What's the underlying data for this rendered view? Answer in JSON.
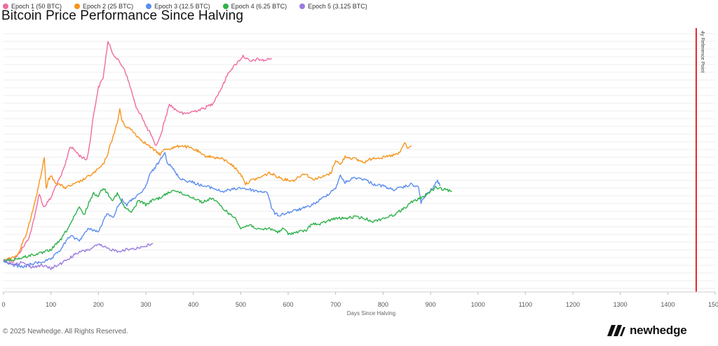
{
  "header": {
    "title": "Bitcoin Price Performance Since Halving"
  },
  "legend": [
    {
      "label": "Epoch 1 (50 BTC)",
      "color": "#f06ba0"
    },
    {
      "label": "Epoch 2 (25 BTC)",
      "color": "#f7941d"
    },
    {
      "label": "Epoch 3 (12.5 BTC)",
      "color": "#5b8def"
    },
    {
      "label": "Epoch 4 (6.25 BTC)",
      "color": "#2fb24c"
    },
    {
      "label": "Epoch 5 (3.125 BTC)",
      "color": "#9b7be0"
    }
  ],
  "footer": {
    "copyright": "© 2025 Newhedge. All Rights Reserved.",
    "brand": "newhedge",
    "logo_icon": "newhedge-logo-icon"
  },
  "chart_data": {
    "type": "line",
    "xlabel": "Days Since Halving",
    "xlim": [
      0,
      1500
    ],
    "x_ticks": [
      0,
      100,
      200,
      300,
      400,
      500,
      600,
      700,
      800,
      900,
      1000,
      1100,
      1200,
      1300,
      1400,
      1500
    ],
    "y_scale": "log",
    "y_tick_labels_visible": false,
    "grid": {
      "horizontal": true,
      "vertical": false
    },
    "legend_position": "top-left",
    "reference_line": {
      "x": 1460,
      "label": "4y Reference Point",
      "color": "#e0282e"
    },
    "series": [
      {
        "name": "Epoch 1 (50 BTC)",
        "color": "#f06ba0",
        "points": [
          [
            0,
            1.0
          ],
          [
            10,
            1.05
          ],
          [
            20,
            0.98
          ],
          [
            30,
            1.1
          ],
          [
            45,
            1.3
          ],
          [
            55,
            1.5
          ],
          [
            65,
            2.0
          ],
          [
            75,
            3.0
          ],
          [
            85,
            2.4
          ],
          [
            100,
            2.8
          ],
          [
            110,
            3.4
          ],
          [
            120,
            3.9
          ],
          [
            130,
            4.8
          ],
          [
            140,
            6.5
          ],
          [
            150,
            6.1
          ],
          [
            160,
            5.6
          ],
          [
            175,
            5.2
          ],
          [
            180,
            6.2
          ],
          [
            190,
            11.0
          ],
          [
            200,
            17.0
          ],
          [
            210,
            20.0
          ],
          [
            220,
            36.0
          ],
          [
            230,
            30.0
          ],
          [
            240,
            27.0
          ],
          [
            255,
            23.0
          ],
          [
            270,
            16.0
          ],
          [
            280,
            12.0
          ],
          [
            290,
            11.0
          ],
          [
            300,
            9.0
          ],
          [
            310,
            8.0
          ],
          [
            320,
            6.5
          ],
          [
            330,
            7.5
          ],
          [
            340,
            10.0
          ],
          [
            350,
            13.0
          ],
          [
            360,
            12.0
          ],
          [
            380,
            11.0
          ],
          [
            400,
            11.5
          ],
          [
            420,
            12.0
          ],
          [
            440,
            13.0
          ],
          [
            460,
            17.0
          ],
          [
            475,
            22.0
          ],
          [
            490,
            25.0
          ],
          [
            505,
            28.5
          ],
          [
            520,
            26.0
          ],
          [
            535,
            27.0
          ],
          [
            550,
            26.5
          ],
          [
            565,
            27.5
          ]
        ]
      },
      {
        "name": "Epoch 2 (25 BTC)",
        "color": "#f7941d",
        "points": [
          [
            0,
            1.0
          ],
          [
            30,
            1.1
          ],
          [
            50,
            1.6
          ],
          [
            60,
            2.2
          ],
          [
            70,
            3.0
          ],
          [
            80,
            4.2
          ],
          [
            86,
            5.5
          ],
          [
            90,
            3.2
          ],
          [
            95,
            3.8
          ],
          [
            100,
            4.0
          ],
          [
            110,
            3.6
          ],
          [
            130,
            3.3
          ],
          [
            150,
            3.5
          ],
          [
            170,
            3.8
          ],
          [
            190,
            4.2
          ],
          [
            210,
            4.8
          ],
          [
            220,
            5.8
          ],
          [
            230,
            7.5
          ],
          [
            240,
            9.5
          ],
          [
            245,
            12.0
          ],
          [
            250,
            9.8
          ],
          [
            258,
            9.0
          ],
          [
            270,
            8.5
          ],
          [
            285,
            7.5
          ],
          [
            300,
            6.8
          ],
          [
            315,
            6.2
          ],
          [
            330,
            5.7
          ],
          [
            340,
            6.2
          ],
          [
            355,
            6.3
          ],
          [
            375,
            6.6
          ],
          [
            395,
            6.3
          ],
          [
            410,
            6.0
          ],
          [
            420,
            5.6
          ],
          [
            435,
            5.5
          ],
          [
            460,
            5.3
          ],
          [
            475,
            5.0
          ],
          [
            490,
            4.5
          ],
          [
            505,
            3.9
          ],
          [
            510,
            3.5
          ],
          [
            520,
            3.7
          ],
          [
            540,
            3.9
          ],
          [
            560,
            4.2
          ],
          [
            575,
            4.0
          ],
          [
            590,
            3.8
          ],
          [
            610,
            3.7
          ],
          [
            625,
            4.0
          ],
          [
            635,
            4.2
          ],
          [
            650,
            3.8
          ],
          [
            670,
            3.9
          ],
          [
            690,
            4.2
          ],
          [
            700,
            5.2
          ],
          [
            710,
            4.8
          ],
          [
            720,
            5.5
          ],
          [
            740,
            5.3
          ],
          [
            760,
            5.0
          ],
          [
            780,
            5.4
          ],
          [
            800,
            5.4
          ],
          [
            820,
            5.6
          ],
          [
            835,
            5.8
          ],
          [
            845,
            6.9
          ],
          [
            852,
            6.3
          ],
          [
            860,
            6.5
          ]
        ]
      },
      {
        "name": "Epoch 3 (12.5 BTC)",
        "color": "#5b8def",
        "points": [
          [
            0,
            1.0
          ],
          [
            20,
            0.93
          ],
          [
            40,
            0.9
          ],
          [
            60,
            0.95
          ],
          [
            80,
            0.98
          ],
          [
            100,
            1.02
          ],
          [
            120,
            1.2
          ],
          [
            140,
            1.5
          ],
          [
            160,
            1.4
          ],
          [
            180,
            1.7
          ],
          [
            200,
            1.6
          ],
          [
            210,
            1.9
          ],
          [
            220,
            2.2
          ],
          [
            230,
            2.0
          ],
          [
            240,
            2.4
          ],
          [
            250,
            2.7
          ],
          [
            260,
            2.5
          ],
          [
            275,
            2.8
          ],
          [
            290,
            3.0
          ],
          [
            300,
            3.4
          ],
          [
            310,
            4.2
          ],
          [
            320,
            4.6
          ],
          [
            330,
            5.2
          ],
          [
            340,
            6.0
          ],
          [
            345,
            5.0
          ],
          [
            355,
            4.6
          ],
          [
            370,
            3.9
          ],
          [
            385,
            3.7
          ],
          [
            400,
            3.6
          ],
          [
            420,
            3.4
          ],
          [
            440,
            3.3
          ],
          [
            460,
            3.1
          ],
          [
            480,
            3.2
          ],
          [
            500,
            3.3
          ],
          [
            520,
            3.2
          ],
          [
            540,
            3.1
          ],
          [
            555,
            3.1
          ],
          [
            565,
            2.4
          ],
          [
            570,
            2.2
          ],
          [
            580,
            2.1
          ],
          [
            600,
            2.2
          ],
          [
            620,
            2.3
          ],
          [
            640,
            2.4
          ],
          [
            660,
            2.6
          ],
          [
            680,
            2.9
          ],
          [
            700,
            3.3
          ],
          [
            710,
            4.0
          ],
          [
            720,
            3.6
          ],
          [
            740,
            3.9
          ],
          [
            760,
            3.8
          ],
          [
            780,
            3.5
          ],
          [
            800,
            3.4
          ],
          [
            820,
            3.2
          ],
          [
            840,
            3.3
          ],
          [
            860,
            3.5
          ],
          [
            875,
            3.3
          ],
          [
            880,
            2.6
          ],
          [
            890,
            2.9
          ],
          [
            905,
            3.3
          ],
          [
            915,
            3.7
          ],
          [
            920,
            3.4
          ]
        ]
      },
      {
        "name": "Epoch 4 (6.25 BTC)",
        "color": "#2fb24c",
        "points": [
          [
            0,
            1.0
          ],
          [
            20,
            1.02
          ],
          [
            40,
            1.05
          ],
          [
            60,
            1.1
          ],
          [
            80,
            1.13
          ],
          [
            100,
            1.2
          ],
          [
            120,
            1.4
          ],
          [
            140,
            1.8
          ],
          [
            160,
            2.4
          ],
          [
            170,
            2.1
          ],
          [
            180,
            2.6
          ],
          [
            190,
            3.0
          ],
          [
            200,
            2.9
          ],
          [
            210,
            3.3
          ],
          [
            220,
            3.0
          ],
          [
            230,
            2.7
          ],
          [
            240,
            3.0
          ],
          [
            255,
            2.4
          ],
          [
            270,
            2.2
          ],
          [
            285,
            2.7
          ],
          [
            300,
            2.5
          ],
          [
            315,
            2.7
          ],
          [
            330,
            2.8
          ],
          [
            345,
            3.0
          ],
          [
            360,
            3.2
          ],
          [
            375,
            3.0
          ],
          [
            390,
            2.9
          ],
          [
            400,
            2.8
          ],
          [
            420,
            2.6
          ],
          [
            440,
            2.8
          ],
          [
            460,
            2.4
          ],
          [
            480,
            2.1
          ],
          [
            490,
            2.0
          ],
          [
            500,
            1.7
          ],
          [
            520,
            1.8
          ],
          [
            540,
            1.65
          ],
          [
            560,
            1.7
          ],
          [
            580,
            1.6
          ],
          [
            590,
            1.7
          ],
          [
            600,
            1.55
          ],
          [
            620,
            1.6
          ],
          [
            640,
            1.65
          ],
          [
            650,
            1.85
          ],
          [
            665,
            1.8
          ],
          [
            680,
            1.9
          ],
          [
            700,
            2.0
          ],
          [
            720,
            2.0
          ],
          [
            740,
            2.05
          ],
          [
            760,
            2.0
          ],
          [
            780,
            1.9
          ],
          [
            800,
            2.0
          ],
          [
            820,
            2.1
          ],
          [
            840,
            2.3
          ],
          [
            860,
            2.6
          ],
          [
            880,
            2.8
          ],
          [
            900,
            3.1
          ],
          [
            910,
            3.3
          ],
          [
            930,
            3.2
          ],
          [
            945,
            3.1
          ]
        ]
      },
      {
        "name": "Epoch 5 (3.125 BTC)",
        "color": "#9b7be0",
        "points": [
          [
            0,
            1.0
          ],
          [
            20,
            0.95
          ],
          [
            40,
            0.97
          ],
          [
            60,
            0.9
          ],
          [
            80,
            0.93
          ],
          [
            100,
            0.88
          ],
          [
            110,
            0.92
          ],
          [
            120,
            0.95
          ],
          [
            140,
            1.05
          ],
          [
            160,
            1.15
          ],
          [
            180,
            1.2
          ],
          [
            200,
            1.3
          ],
          [
            220,
            1.22
          ],
          [
            240,
            1.17
          ],
          [
            260,
            1.2
          ],
          [
            280,
            1.23
          ],
          [
            300,
            1.27
          ],
          [
            315,
            1.33
          ]
        ]
      }
    ]
  }
}
